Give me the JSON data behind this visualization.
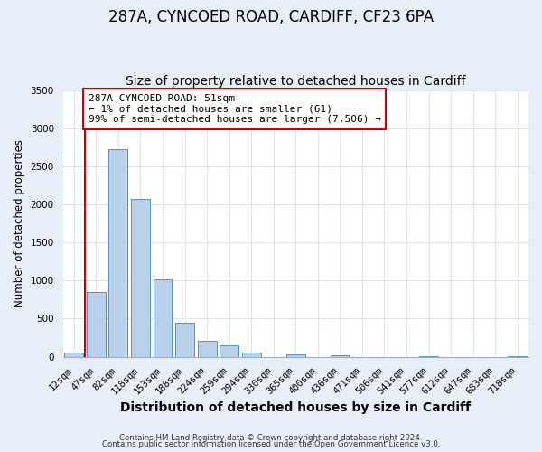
{
  "title": "287A, CYNCOED ROAD, CARDIFF, CF23 6PA",
  "subtitle": "Size of property relative to detached houses in Cardiff",
  "xlabel": "Distribution of detached houses by size in Cardiff",
  "ylabel": "Number of detached properties",
  "bar_labels": [
    "12sqm",
    "47sqm",
    "82sqm",
    "118sqm",
    "153sqm",
    "188sqm",
    "224sqm",
    "259sqm",
    "294sqm",
    "330sqm",
    "365sqm",
    "400sqm",
    "436sqm",
    "471sqm",
    "506sqm",
    "541sqm",
    "577sqm",
    "612sqm",
    "647sqm",
    "683sqm",
    "718sqm"
  ],
  "bar_values": [
    60,
    850,
    2720,
    2070,
    1010,
    450,
    205,
    145,
    55,
    0,
    30,
    0,
    20,
    0,
    0,
    0,
    10,
    0,
    0,
    0,
    10
  ],
  "bar_color": "#b8d0ea",
  "bar_edge_color": "#5a8fc2",
  "vline_color": "#cc0000",
  "annotation_text": "287A CYNCOED ROAD: 51sqm\n← 1% of detached houses are smaller (61)\n99% of semi-detached houses are larger (7,506) →",
  "annotation_box_facecolor": "#ffffff",
  "annotation_box_edgecolor": "#cc0000",
  "ylim": [
    0,
    3500
  ],
  "yticks": [
    0,
    500,
    1000,
    1500,
    2000,
    2500,
    3000,
    3500
  ],
  "fig_bg_color": "#e8eef8",
  "plot_bg_color": "#ffffff",
  "grid_color": "#dde4f0",
  "footer_line1": "Contains HM Land Registry data © Crown copyright and database right 2024.",
  "footer_line2": "Contains public sector information licensed under the Open Government Licence v3.0.",
  "title_fontsize": 12,
  "subtitle_fontsize": 10,
  "xlabel_fontsize": 10,
  "ylabel_fontsize": 8.5,
  "tick_fontsize": 7.5,
  "annot_fontsize": 8,
  "footer_fontsize": 6.2
}
